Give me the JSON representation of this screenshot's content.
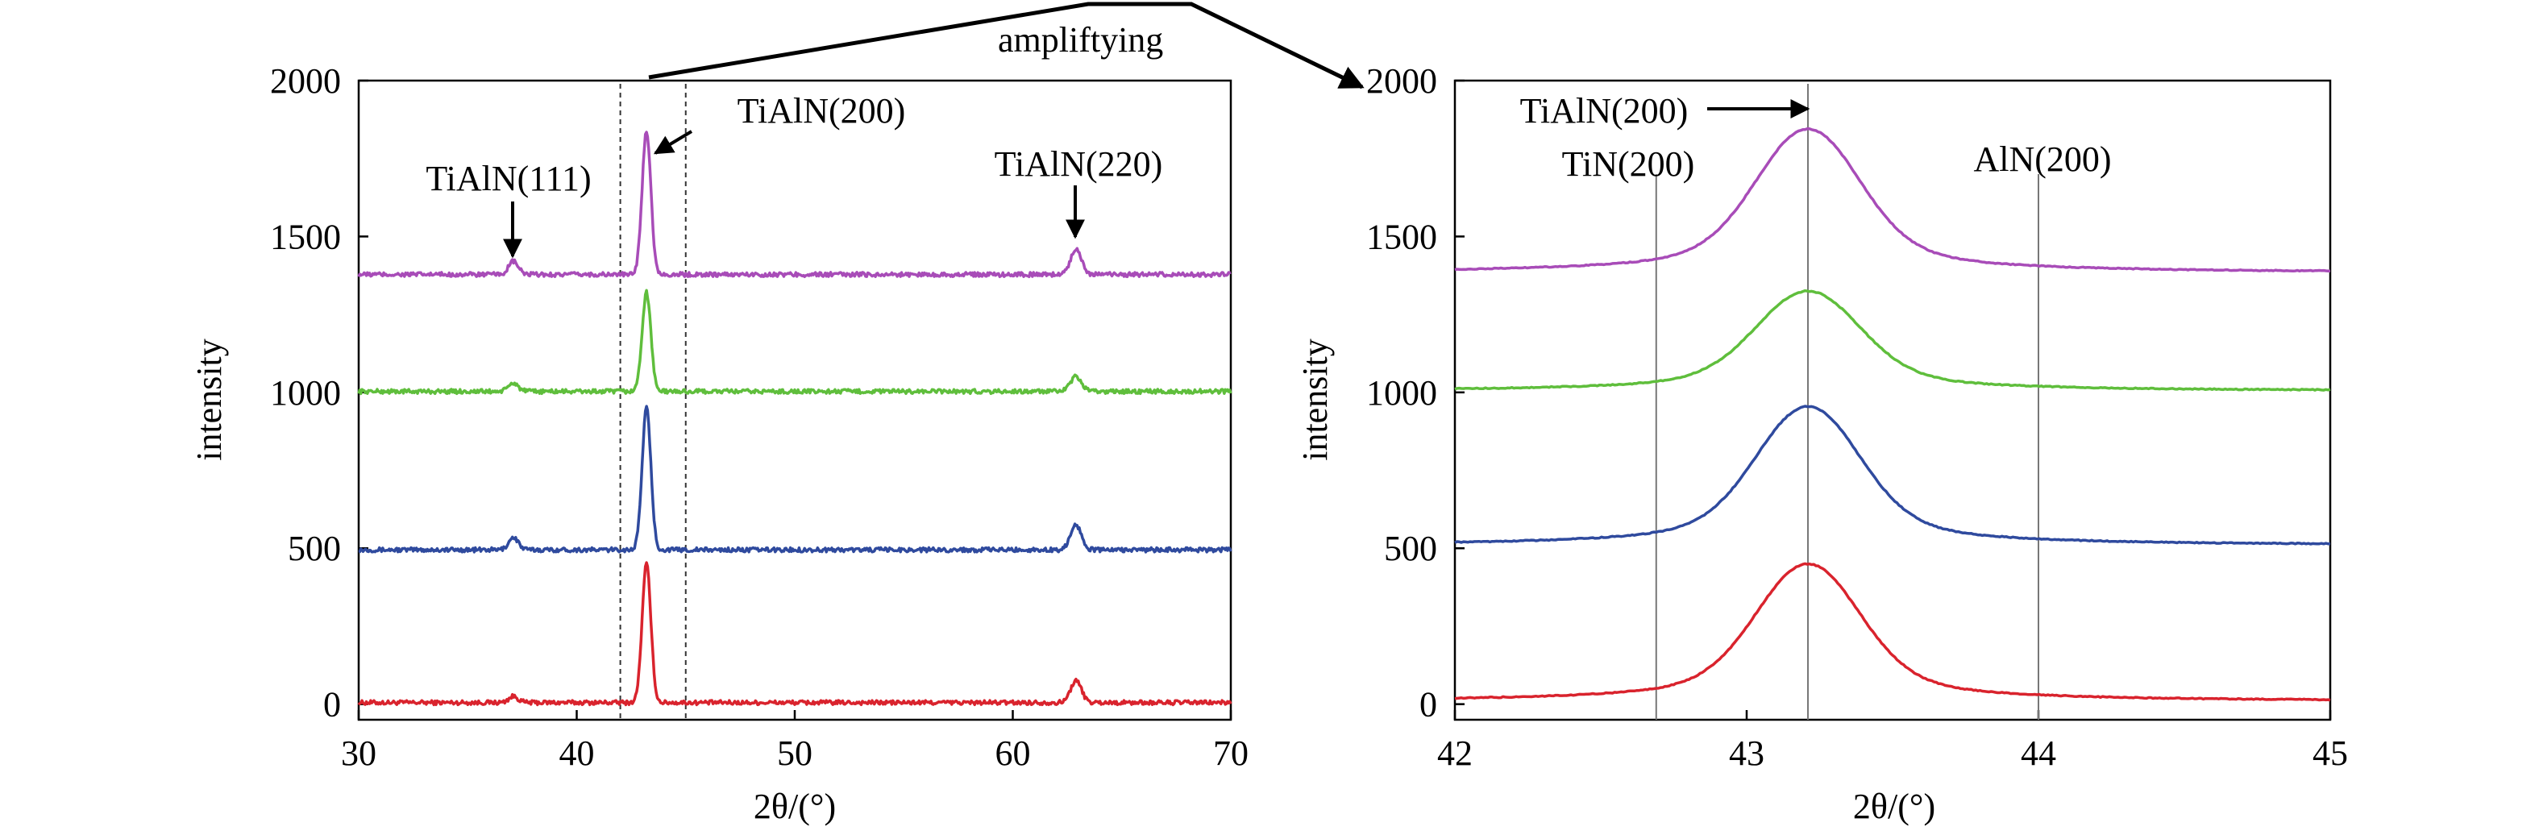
{
  "chart_data": [
    {
      "type": "line",
      "panel": "left",
      "xlabel": "2θ/(°)",
      "ylabel": "intensity",
      "xlim": [
        30,
        70
      ],
      "ylim": [
        -50,
        2000
      ],
      "xticks": [
        30,
        40,
        50,
        60,
        70
      ],
      "yticks": [
        0,
        500,
        1000,
        1500,
        2000
      ],
      "grid": false,
      "legend": "none",
      "series": [
        {
          "color": "#d9232d",
          "baseline": 5,
          "peaks": [
            {
              "x": 37.1,
              "y": 25,
              "w": 0.22
            },
            {
              "x": 43.2,
              "y": 450,
              "w": 0.2
            },
            {
              "x": 62.9,
              "y": 75,
              "w": 0.25
            }
          ]
        },
        {
          "color": "#2f4a9e",
          "baseline": 495,
          "peaks": [
            {
              "x": 37.1,
              "y": 535,
              "w": 0.22
            },
            {
              "x": 43.2,
              "y": 950,
              "w": 0.2
            },
            {
              "x": 62.9,
              "y": 575,
              "w": 0.25
            }
          ]
        },
        {
          "color": "#5fbe3c",
          "baseline": 1003,
          "peaks": [
            {
              "x": 37.1,
              "y": 1030,
              "w": 0.22
            },
            {
              "x": 43.2,
              "y": 1320,
              "w": 0.2
            },
            {
              "x": 62.9,
              "y": 1050,
              "w": 0.25
            }
          ]
        },
        {
          "color": "#a84cb8",
          "baseline": 1378,
          "peaks": [
            {
              "x": 37.1,
              "y": 1420,
              "w": 0.22
            },
            {
              "x": 43.2,
              "y": 1840,
              "w": 0.2
            },
            {
              "x": 62.9,
              "y": 1460,
              "w": 0.25
            }
          ]
        }
      ],
      "reference_lines": [
        42,
        45
      ],
      "annotations": [
        {
          "text": "TiAlN(111)",
          "x": 37.1
        },
        {
          "text": "TiAlN(200)",
          "x": 43.2
        },
        {
          "text": "TiAlN(220)",
          "x": 62.9
        }
      ]
    },
    {
      "type": "line",
      "panel": "right",
      "xlabel": "2θ/(°)",
      "ylabel": "intensity",
      "xlim": [
        42,
        45
      ],
      "ylim": [
        -50,
        2000
      ],
      "xticks": [
        42,
        43,
        44,
        45
      ],
      "yticks": [
        0,
        500,
        1000,
        1500,
        2000
      ],
      "grid": false,
      "legend": "none",
      "series": [
        {
          "color": "#d9232d",
          "baseline": 10,
          "peak_x": 43.21,
          "peak_y": 450
        },
        {
          "color": "#2f4a9e",
          "baseline": 510,
          "peak_x": 43.21,
          "peak_y": 955
        },
        {
          "color": "#5fbe3c",
          "baseline": 1005,
          "peak_x": 43.21,
          "peak_y": 1325
        },
        {
          "color": "#a84cb8",
          "baseline": 1385,
          "peak_x": 43.21,
          "peak_y": 1845
        }
      ],
      "reference_lines": [
        {
          "x": 42.69,
          "label": "TiN(200)"
        },
        {
          "x": 43.21,
          "label": "TiAlN(200)"
        },
        {
          "x": 44.0,
          "label": "AlN(200)"
        }
      ]
    }
  ],
  "zoom_label": "ampliftying"
}
